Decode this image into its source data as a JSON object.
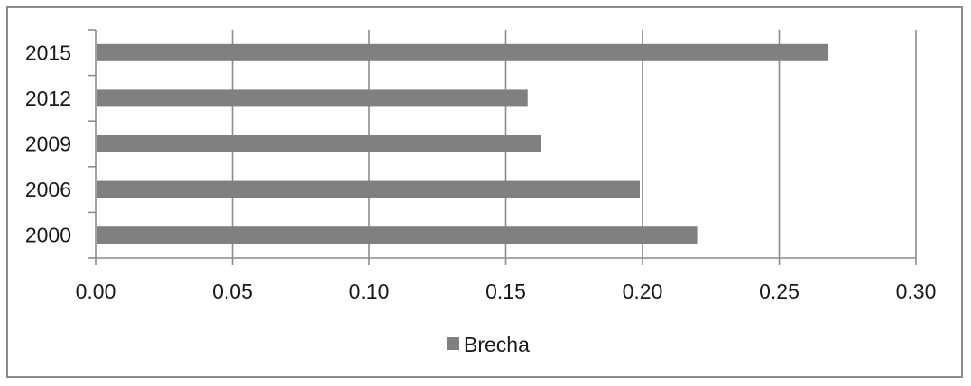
{
  "chart_data": {
    "type": "bar",
    "orientation": "horizontal",
    "categories": [
      "2015",
      "2012",
      "2009",
      "2006",
      "2000"
    ],
    "series": [
      {
        "name": "Brecha",
        "values": [
          0.268,
          0.158,
          0.163,
          0.199,
          0.22
        ],
        "color": "#808080"
      }
    ],
    "xlim": [
      0,
      0.3
    ],
    "x_ticks": [
      "0.00",
      "0.05",
      "0.10",
      "0.15",
      "0.20",
      "0.25",
      "0.30"
    ],
    "x_tick_values": [
      0,
      0.05,
      0.1,
      0.15,
      0.2,
      0.25,
      0.3
    ],
    "grid": "vertical",
    "legend_position": "bottom",
    "colors": {
      "bar": "#808080",
      "grid": "#8c8c8c",
      "axis": "#8c8c8c",
      "frame": "#8c8c8c"
    }
  }
}
